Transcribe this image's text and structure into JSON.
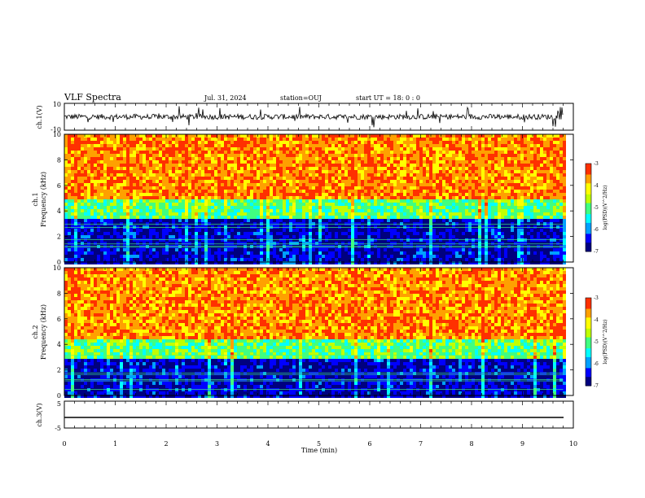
{
  "header": {
    "title": "VLF Spectra",
    "date": "Jul. 31, 2024",
    "station": "station=OUJ",
    "start": "start UT =  18: 0 : 0"
  },
  "chart_data": [
    {
      "type": "line",
      "panel": "ch1-waveform",
      "ylabel": "ch.1(V)",
      "ylim": [
        -10,
        10
      ],
      "ytick_labels": [
        "10",
        "-10"
      ],
      "xlim": [
        0,
        10
      ],
      "description_values": {
        "baseline": 0,
        "typical_amplitude": 2,
        "spike_amplitude": 8
      }
    },
    {
      "type": "heatmap",
      "panel": "ch1-spectrogram",
      "ylabel": "ch.1 Frequency (kHz)",
      "ylim": [
        0,
        10
      ],
      "ytick_labels": [
        "0",
        "2",
        "4",
        "6",
        "8",
        "10"
      ],
      "xlim": [
        0,
        9.8
      ],
      "color_scale": {
        "label": "log(PSD)(V^2/Hz)",
        "range": [
          -7,
          -3
        ],
        "tick_labels": [
          "-3",
          "-4",
          "-5",
          "-6",
          "-7"
        ]
      },
      "band_structure": [
        {
          "freq_range": [
            0,
            3.5
          ],
          "log_psd": -6.6
        },
        {
          "freq_range": [
            3.5,
            5.0
          ],
          "log_psd": -5.0
        },
        {
          "freq_range": [
            5.0,
            10
          ],
          "log_psd": -3.6
        }
      ]
    },
    {
      "type": "heatmap",
      "panel": "ch2-spectrogram",
      "ylabel": "ch.2 Frequency (kHz)",
      "ylim": [
        0,
        10
      ],
      "ytick_labels": [
        "0",
        "2",
        "4",
        "6",
        "8",
        "10"
      ],
      "xlim": [
        0,
        9.8
      ],
      "color_scale": {
        "label": "log(PSD)(V^2/Hz)",
        "range": [
          -7,
          -3
        ],
        "tick_labels": [
          "-3",
          "-4",
          "-5",
          "-6",
          "-7"
        ]
      },
      "band_structure": [
        {
          "freq_range": [
            0,
            3.0
          ],
          "log_psd": -6.6
        },
        {
          "freq_range": [
            3.0,
            4.5
          ],
          "log_psd": -5.0
        },
        {
          "freq_range": [
            4.5,
            10
          ],
          "log_psd": -3.6
        }
      ]
    },
    {
      "type": "line",
      "panel": "ch3-waveform",
      "ylabel": "ch.3(V)",
      "ylim": [
        -5,
        5
      ],
      "ytick_labels": [
        "5",
        "-5"
      ],
      "xlim": [
        0,
        10
      ],
      "description_values": {
        "baseline": -1.5
      }
    }
  ],
  "xaxis": {
    "label": "Time (min)",
    "range": [
      0,
      10
    ],
    "tick_labels": [
      "0",
      "1",
      "2",
      "3",
      "4",
      "5",
      "6",
      "7",
      "8",
      "9",
      "10"
    ]
  },
  "colors": {
    "colormap": [
      "#00007f",
      "#0000ff",
      "#00a0ff",
      "#00ffff",
      "#40ff80",
      "#c0ff00",
      "#ffff00",
      "#ffa000",
      "#ff3000",
      "#ff8080"
    ],
    "line": "#000000"
  }
}
